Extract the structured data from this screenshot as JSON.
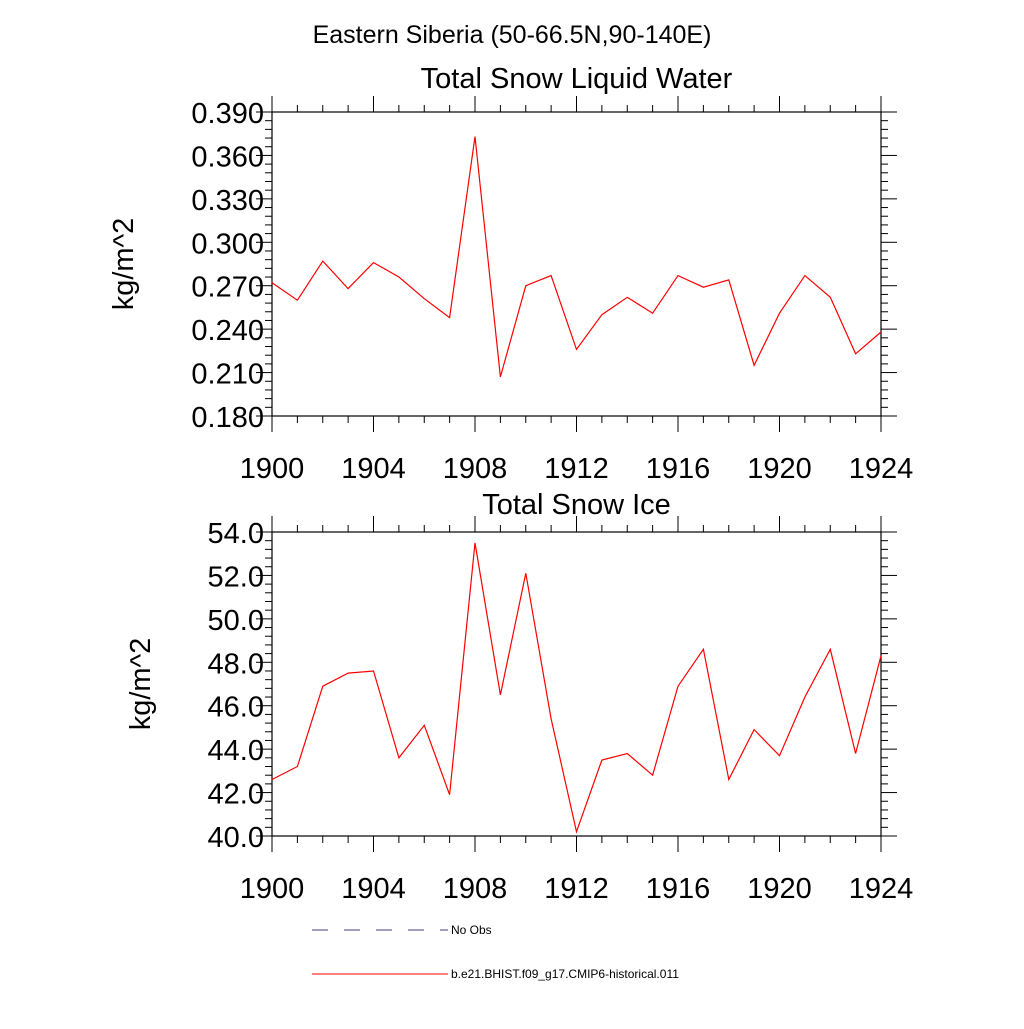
{
  "suptitle": "Eastern Siberia (50-66.5N,90-140E)",
  "chart_data": [
    {
      "type": "line",
      "title": "Total Snow Liquid Water",
      "xlabel": "",
      "ylabel": "kg/m^2",
      "xlim": [
        1900,
        1924
      ],
      "ylim": [
        0.18,
        0.39
      ],
      "xticks": [
        1900,
        1904,
        1908,
        1912,
        1916,
        1920,
        1924
      ],
      "xtick_labels": [
        "1900",
        "1904",
        "1908",
        "1912",
        "1916",
        "1920",
        "1924"
      ],
      "yticks": [
        0.18,
        0.21,
        0.24,
        0.27,
        0.3,
        0.33,
        0.36,
        0.39
      ],
      "ytick_labels": [
        "0.180",
        "0.210",
        "0.240",
        "0.270",
        "0.300",
        "0.330",
        "0.360",
        "0.390"
      ],
      "grid": false,
      "series": [
        {
          "name": "b.e21.BHIST.f09_g17.CMIP6-historical.011",
          "color": "#ff0000",
          "x": [
            1900,
            1901,
            1902,
            1903,
            1904,
            1905,
            1906,
            1907,
            1908,
            1909,
            1910,
            1911,
            1912,
            1913,
            1914,
            1915,
            1916,
            1917,
            1918,
            1919,
            1920,
            1921,
            1922,
            1923,
            1924
          ],
          "values": [
            0.272,
            0.26,
            0.287,
            0.268,
            0.286,
            0.276,
            0.261,
            0.248,
            0.373,
            0.207,
            0.27,
            0.277,
            0.226,
            0.25,
            0.262,
            0.251,
            0.277,
            0.269,
            0.274,
            0.215,
            0.251,
            0.277,
            0.262,
            0.223,
            0.238
          ]
        }
      ]
    },
    {
      "type": "line",
      "title": "Total Snow Ice",
      "xlabel": "",
      "ylabel": "kg/m^2",
      "xlim": [
        1900,
        1924
      ],
      "ylim": [
        40.0,
        54.0
      ],
      "xticks": [
        1900,
        1904,
        1908,
        1912,
        1916,
        1920,
        1924
      ],
      "xtick_labels": [
        "1900",
        "1904",
        "1908",
        "1912",
        "1916",
        "1920",
        "1924"
      ],
      "yticks": [
        40,
        42,
        44,
        46,
        48,
        50,
        52,
        54
      ],
      "ytick_labels": [
        "40.0",
        "42.0",
        "44.0",
        "46.0",
        "48.0",
        "50.0",
        "52.0",
        "54.0"
      ],
      "grid": false,
      "series": [
        {
          "name": "b.e21.BHIST.f09_g17.CMIP6-historical.011",
          "color": "#ff0000",
          "x": [
            1900,
            1901,
            1902,
            1903,
            1904,
            1905,
            1906,
            1907,
            1908,
            1909,
            1910,
            1911,
            1912,
            1913,
            1914,
            1915,
            1916,
            1917,
            1918,
            1919,
            1920,
            1921,
            1922,
            1923,
            1924
          ],
          "values": [
            42.6,
            43.2,
            46.9,
            47.5,
            47.6,
            43.6,
            45.1,
            41.9,
            53.5,
            46.5,
            52.1,
            45.4,
            40.2,
            43.5,
            43.8,
            42.8,
            46.9,
            48.6,
            42.6,
            44.9,
            43.7,
            46.4,
            48.6,
            43.8,
            48.3
          ]
        }
      ]
    }
  ],
  "legend": {
    "items": [
      {
        "label": "No Obs",
        "color": "#3f3f7a",
        "style": "dashed"
      },
      {
        "label": "b.e21.BHIST.f09_g17.CMIP6-historical.011",
        "color": "#ff0000",
        "style": "solid"
      }
    ]
  }
}
